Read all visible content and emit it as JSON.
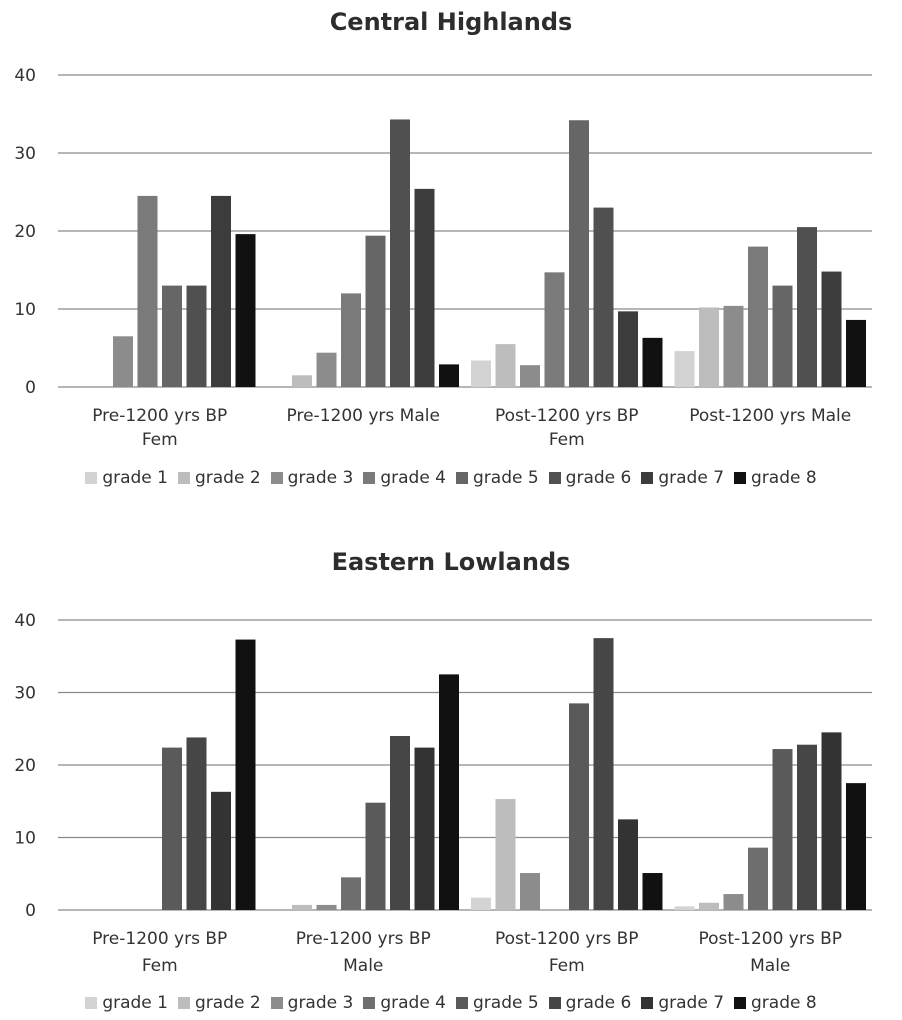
{
  "chart_data": [
    {
      "type": "bar",
      "title": "Central Highlands",
      "categories": [
        "Pre-1200 yrs BP Fem",
        "Pre-1200 yrs Male",
        "Post-1200 yrs BP Fem",
        "Post-1200 yrs Male"
      ],
      "ylim": [
        0,
        40
      ],
      "yticks": [
        "0",
        "10",
        "20",
        "30",
        "40"
      ],
      "grid": true,
      "legend_position": "bottom",
      "series": [
        {
          "name": "grade 1",
          "color": "#d3d3d3",
          "values": [
            0,
            0,
            3.4,
            4.6
          ]
        },
        {
          "name": "grade 2",
          "color": "#bdbdbd",
          "values": [
            0,
            1.5,
            5.5,
            10.2
          ]
        },
        {
          "name": "grade 3",
          "color": "#8c8c8c",
          "values": [
            6.5,
            4.4,
            2.8,
            10.4
          ]
        },
        {
          "name": "grade 4",
          "color": "#7a7a7a",
          "values": [
            24.5,
            12.0,
            14.7,
            18.0
          ]
        },
        {
          "name": "grade 5",
          "color": "#666666",
          "values": [
            13.0,
            19.4,
            34.2,
            13.0
          ]
        },
        {
          "name": "grade 6",
          "color": "#505050",
          "values": [
            13.0,
            34.3,
            23.0,
            20.5
          ]
        },
        {
          "name": "grade 7",
          "color": "#3c3c3c",
          "values": [
            24.5,
            25.4,
            9.7,
            14.8
          ]
        },
        {
          "name": "grade 8",
          "color": "#111111",
          "values": [
            19.6,
            2.9,
            6.3,
            8.6
          ]
        }
      ]
    },
    {
      "type": "bar",
      "title": "Eastern Lowlands",
      "categories": [
        "Pre-1200 yrs BP Fem",
        "Pre-1200 yrs BP Male",
        "Post-1200 yrs BP Fem",
        "Post-1200 yrs BP Male"
      ],
      "ylim": [
        0,
        40
      ],
      "yticks": [
        "0",
        "10",
        "20",
        "30",
        "40"
      ],
      "grid": true,
      "legend_position": "bottom",
      "series": [
        {
          "name": "grade 1",
          "color": "#d3d3d3",
          "values": [
            0,
            0,
            1.7,
            0.5
          ]
        },
        {
          "name": "grade 2",
          "color": "#bdbdbd",
          "values": [
            0,
            0.7,
            15.3,
            1.0
          ]
        },
        {
          "name": "grade 3",
          "color": "#8c8c8c",
          "values": [
            0,
            0.7,
            5.1,
            2.2
          ]
        },
        {
          "name": "grade 4",
          "color": "#6e6e6e",
          "values": [
            0,
            4.5,
            0,
            8.6
          ]
        },
        {
          "name": "grade 5",
          "color": "#5a5a5a",
          "values": [
            22.4,
            14.8,
            28.5,
            22.2
          ]
        },
        {
          "name": "grade 6",
          "color": "#464646",
          "values": [
            23.8,
            24.0,
            37.5,
            22.8
          ]
        },
        {
          "name": "grade 7",
          "color": "#333333",
          "values": [
            16.3,
            22.4,
            12.5,
            24.5
          ]
        },
        {
          "name": "grade 8",
          "color": "#111111",
          "values": [
            37.3,
            32.5,
            5.1,
            17.5
          ]
        }
      ]
    }
  ]
}
